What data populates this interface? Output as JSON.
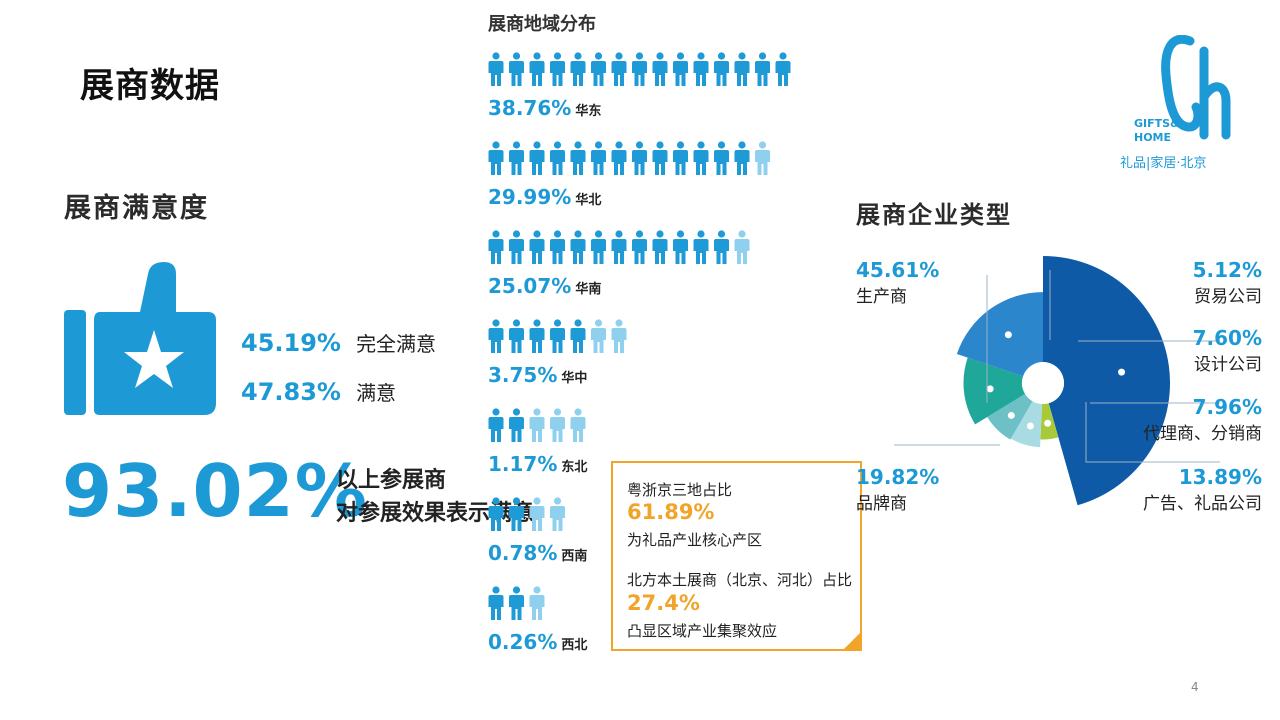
{
  "page": {
    "title": "展商数据",
    "page_number": "4"
  },
  "logo": {
    "brand_line1": "GIFTS&",
    "brand_line2": "HOME",
    "tagline": "礼品|家居·北京"
  },
  "satisfaction": {
    "title": "展商满意度",
    "items": [
      {
        "pct": "45.19%",
        "label": "完全满意"
      },
      {
        "pct": "47.83%",
        "label": "满意"
      }
    ],
    "total_pct": "93.02%",
    "total_line1": "以上参展商",
    "total_line2": "对参展效果表示满意"
  },
  "regions": {
    "title": "展商地域分布",
    "colors": {
      "dark": "#1e9ad6",
      "light": "#8fd0ee"
    },
    "rows": [
      {
        "pct": "38.76%",
        "name": "华东",
        "dark": 15,
        "light": 0
      },
      {
        "pct": "29.99%",
        "name": "华北",
        "dark": 13,
        "light": 1
      },
      {
        "pct": "25.07%",
        "name": "华南",
        "dark": 12,
        "light": 1
      },
      {
        "pct": "3.75%",
        "name": "华中",
        "dark": 5,
        "light": 2
      },
      {
        "pct": "1.17%",
        "name": "东北",
        "dark": 2,
        "light": 3
      },
      {
        "pct": "0.78%",
        "name": "西南",
        "dark": 2,
        "light": 2
      },
      {
        "pct": "0.26%",
        "name": "西北",
        "dark": 2,
        "light": 1
      }
    ]
  },
  "callout": {
    "line1": "粤浙京三地占比",
    "value1": "61.89%",
    "note1": "为礼品产业核心产区",
    "line2": "北方本土展商（北京、河北）占比",
    "value2": "27.4%",
    "note2": "凸显区域产业集聚效应"
  },
  "chart_data": {
    "type": "pie",
    "title": "展商企业类型",
    "variant": "rose (nightingale) with donut hole",
    "slices": [
      {
        "label": "生产商",
        "value": 45.61,
        "display": "45.61%",
        "color": "#0e5aa7"
      },
      {
        "label": "贸易公司",
        "value": 5.12,
        "display": "5.12%",
        "color": "#a8c93a"
      },
      {
        "label": "设计公司",
        "value": 7.6,
        "display": "7.60%",
        "color": "#a9dbe3"
      },
      {
        "label": "代理商、分销商",
        "value": 7.96,
        "display": "7.96%",
        "color": "#6cc0c6"
      },
      {
        "label": "广告、礼品公司",
        "value": 13.89,
        "display": "13.89%",
        "color": "#1fa79a"
      },
      {
        "label": "品牌商",
        "value": 19.82,
        "display": "19.82%",
        "color": "#2b86cc"
      }
    ]
  }
}
